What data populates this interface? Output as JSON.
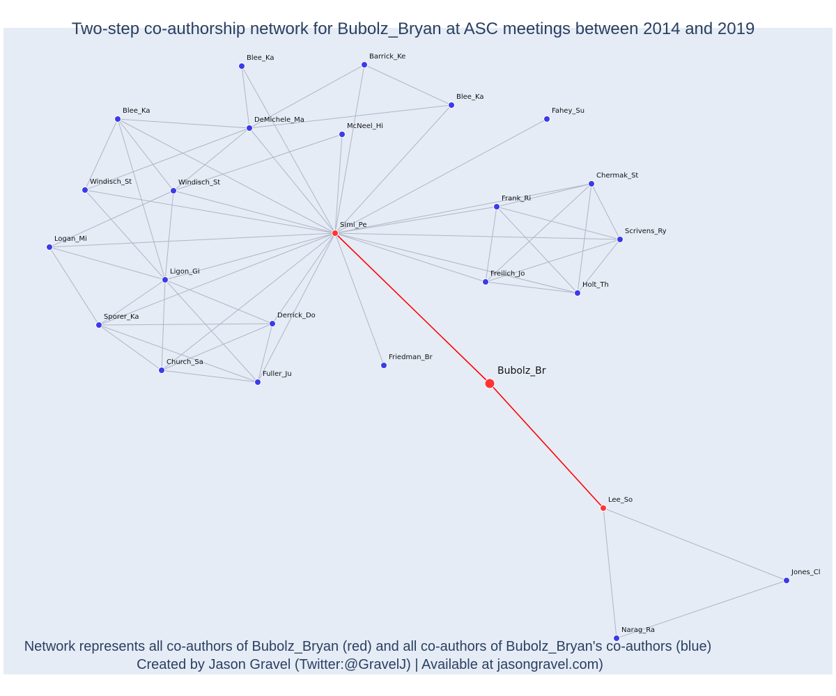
{
  "title": "Two-step co-authorship network for Bubolz_Bryan at ASC meetings between 2014 and 2019",
  "captions": [
    "Network represents all co-authors of Bubolz_Bryan (red) and all co-authors of Bubolz_Bryan's co-authors (blue)",
    "Created by Jason Gravel (Twitter:@GravelJ) | Available at jasongravel.com)"
  ],
  "colors": {
    "coauthor": "#ff3333",
    "second_step": "#3b3bea",
    "focus_edge": "#ff0000",
    "edge": "#b0b4c4",
    "plot_bg": "#e5ecf6"
  },
  "focus": {
    "id": "bubolz",
    "label": "Bubolz_Br"
  },
  "nodes": [
    {
      "id": "bubolz",
      "label": "Bubolz_Br",
      "group": "focus"
    },
    {
      "id": "simi",
      "label": "Simi_Pe",
      "group": "coauthor"
    },
    {
      "id": "lee",
      "label": "Lee_So",
      "group": "coauthor"
    },
    {
      "id": "blee1",
      "label": "Blee_Ka",
      "group": "second"
    },
    {
      "id": "barrick",
      "label": "Barrick_Ke",
      "group": "second"
    },
    {
      "id": "blee2",
      "label": "Blee_Ka",
      "group": "second"
    },
    {
      "id": "blee3",
      "label": "Blee_Ka",
      "group": "second"
    },
    {
      "id": "demichele",
      "label": "DeMichele_Ma",
      "group": "second"
    },
    {
      "id": "mcneel",
      "label": "McNeel_Hi",
      "group": "second"
    },
    {
      "id": "fahey",
      "label": "Fahey_Su",
      "group": "second"
    },
    {
      "id": "windisch1",
      "label": "Windisch_St",
      "group": "second"
    },
    {
      "id": "windisch2",
      "label": "Windisch_St",
      "group": "second"
    },
    {
      "id": "chermak",
      "label": "Chermak_St",
      "group": "second"
    },
    {
      "id": "frank",
      "label": "Frank_Ri",
      "group": "second"
    },
    {
      "id": "scrivens",
      "label": "Scrivens_Ry",
      "group": "second"
    },
    {
      "id": "logan",
      "label": "Logan_Mi",
      "group": "second"
    },
    {
      "id": "ligon",
      "label": "Ligon_Gi",
      "group": "second"
    },
    {
      "id": "freilich",
      "label": "Freilich_Jo",
      "group": "second"
    },
    {
      "id": "holt",
      "label": "Holt_Th",
      "group": "second"
    },
    {
      "id": "sporer",
      "label": "Sporer_Ka",
      "group": "second"
    },
    {
      "id": "derrick",
      "label": "Derrick_Do",
      "group": "second"
    },
    {
      "id": "friedman",
      "label": "Friedman_Br",
      "group": "second"
    },
    {
      "id": "church",
      "label": "Church_Sa",
      "group": "second"
    },
    {
      "id": "fuller",
      "label": "Fuller_Ju",
      "group": "second"
    },
    {
      "id": "jones",
      "label": "Jones_Cl",
      "group": "second"
    },
    {
      "id": "narag",
      "label": "Narag_Ra",
      "group": "second"
    }
  ],
  "edges": [
    [
      "bubolz",
      "simi"
    ],
    [
      "bubolz",
      "lee"
    ],
    [
      "lee",
      "jones"
    ],
    [
      "lee",
      "narag"
    ],
    [
      "jones",
      "narag"
    ],
    [
      "simi",
      "blee1"
    ],
    [
      "simi",
      "barrick"
    ],
    [
      "simi",
      "blee2"
    ],
    [
      "simi",
      "demichele"
    ],
    [
      "simi",
      "mcneel"
    ],
    [
      "simi",
      "fahey"
    ],
    [
      "simi",
      "blee3"
    ],
    [
      "simi",
      "windisch1"
    ],
    [
      "simi",
      "windisch2"
    ],
    [
      "simi",
      "logan"
    ],
    [
      "simi",
      "ligon"
    ],
    [
      "simi",
      "sporer"
    ],
    [
      "simi",
      "church"
    ],
    [
      "simi",
      "derrick"
    ],
    [
      "simi",
      "fuller"
    ],
    [
      "simi",
      "friedman"
    ],
    [
      "simi",
      "frank"
    ],
    [
      "simi",
      "chermak"
    ],
    [
      "simi",
      "scrivens"
    ],
    [
      "simi",
      "freilich"
    ],
    [
      "simi",
      "holt"
    ],
    [
      "blee1",
      "demichele"
    ],
    [
      "barrick",
      "demichele"
    ],
    [
      "barrick",
      "blee2"
    ],
    [
      "demichele",
      "blee2"
    ],
    [
      "blee3",
      "demichele"
    ],
    [
      "blee3",
      "windisch1"
    ],
    [
      "blee3",
      "windisch2"
    ],
    [
      "blee3",
      "ligon"
    ],
    [
      "demichele",
      "windisch1"
    ],
    [
      "demichele",
      "windisch2"
    ],
    [
      "mcneel",
      "windisch2"
    ],
    [
      "windisch2",
      "logan"
    ],
    [
      "windisch2",
      "ligon"
    ],
    [
      "windisch1",
      "ligon"
    ],
    [
      "logan",
      "ligon"
    ],
    [
      "logan",
      "sporer"
    ],
    [
      "ligon",
      "sporer"
    ],
    [
      "ligon",
      "church"
    ],
    [
      "ligon",
      "derrick"
    ],
    [
      "ligon",
      "fuller"
    ],
    [
      "sporer",
      "derrick"
    ],
    [
      "sporer",
      "church"
    ],
    [
      "sporer",
      "fuller"
    ],
    [
      "church",
      "fuller"
    ],
    [
      "church",
      "derrick"
    ],
    [
      "derrick",
      "fuller"
    ],
    [
      "frank",
      "chermak"
    ],
    [
      "frank",
      "scrivens"
    ],
    [
      "frank",
      "freilich"
    ],
    [
      "frank",
      "holt"
    ],
    [
      "chermak",
      "scrivens"
    ],
    [
      "chermak",
      "freilich"
    ],
    [
      "chermak",
      "holt"
    ],
    [
      "scrivens",
      "freilich"
    ],
    [
      "scrivens",
      "holt"
    ],
    [
      "freilich",
      "holt"
    ]
  ]
}
